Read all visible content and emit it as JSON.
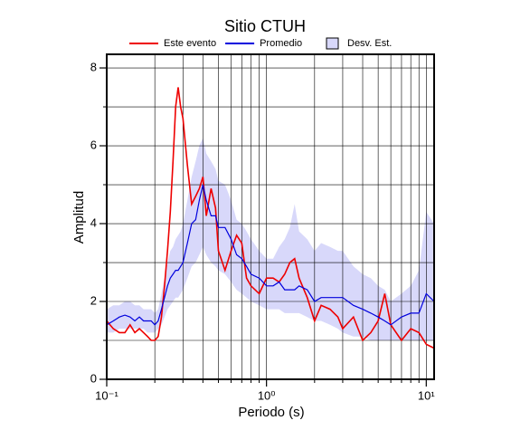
{
  "chart_data": {
    "type": "line",
    "title": "Sitio CTUH",
    "xlabel": "Periodo (s)",
    "ylabel": "Amplitud",
    "log_x": true,
    "grid": true,
    "xlim": [
      0.1,
      11.2
    ],
    "ylim": [
      0,
      8.35
    ],
    "xticks": [
      {
        "value": 0.1,
        "label": "10⁻¹"
      },
      {
        "value": 1,
        "label": "10⁰"
      },
      {
        "value": 10,
        "label": "10¹"
      }
    ],
    "yticks": [
      0,
      2,
      4,
      6,
      8
    ],
    "x": [
      0.1,
      0.11,
      0.12,
      0.13,
      0.14,
      0.15,
      0.16,
      0.17,
      0.18,
      0.19,
      0.2,
      0.21,
      0.22,
      0.23,
      0.24,
      0.25,
      0.26,
      0.27,
      0.28,
      0.29,
      0.3,
      0.32,
      0.34,
      0.36,
      0.38,
      0.4,
      0.42,
      0.45,
      0.48,
      0.5,
      0.55,
      0.6,
      0.65,
      0.7,
      0.75,
      0.8,
      0.9,
      1.0,
      1.1,
      1.2,
      1.3,
      1.4,
      1.5,
      1.6,
      1.8,
      2.0,
      2.2,
      2.5,
      2.8,
      3.0,
      3.5,
      4.0,
      4.5,
      5.0,
      5.5,
      6.0,
      7.0,
      8.0,
      9.0,
      10,
      11.2
    ],
    "band": {
      "name": "Desv. Est.",
      "color": "#d8d8fa",
      "lower": [
        1.2,
        1.2,
        1.3,
        1.3,
        1.3,
        1.3,
        1.3,
        1.3,
        1.2,
        1.2,
        1.2,
        1.3,
        1.4,
        1.6,
        1.8,
        1.9,
        2.0,
        2.1,
        2.1,
        2.2,
        2.3,
        2.6,
        2.9,
        3.0,
        3.2,
        3.4,
        3.2,
        3.0,
        2.9,
        2.8,
        2.7,
        2.5,
        2.3,
        2.2,
        2.1,
        2.0,
        1.9,
        1.8,
        1.8,
        1.8,
        1.7,
        1.7,
        1.7,
        1.7,
        1.6,
        1.5,
        1.5,
        1.4,
        1.3,
        1.2,
        1.1,
        1.1,
        1.0,
        1.0,
        1.0,
        1.0,
        1.0,
        1.0,
        1.0,
        1.0,
        1.0
      ],
      "upper": [
        1.8,
        1.9,
        1.9,
        2.0,
        2.0,
        1.9,
        1.9,
        1.8,
        1.8,
        1.8,
        1.7,
        1.8,
        2.2,
        2.6,
        3.0,
        3.3,
        3.4,
        3.6,
        3.7,
        3.8,
        4.0,
        4.6,
        5.2,
        5.6,
        6.0,
        6.2,
        5.8,
        5.6,
        5.4,
        5.1,
        5.0,
        4.6,
        4.1,
        4.0,
        3.8,
        3.6,
        3.3,
        3.1,
        3.1,
        3.4,
        3.6,
        3.9,
        4.5,
        3.8,
        3.6,
        3.3,
        3.5,
        3.4,
        3.3,
        3.3,
        2.9,
        2.7,
        2.6,
        2.4,
        2.3,
        2.0,
        2.2,
        2.4,
        2.8,
        4.3,
        4.0
      ]
    },
    "series": [
      {
        "name": "Este evento",
        "color": "#ee0000",
        "values": [
          1.5,
          1.3,
          1.2,
          1.2,
          1.4,
          1.2,
          1.3,
          1.2,
          1.1,
          1.0,
          1.0,
          1.1,
          1.6,
          2.4,
          3.3,
          4.3,
          5.6,
          7.0,
          7.5,
          7.0,
          6.7,
          5.5,
          4.5,
          4.7,
          4.9,
          5.2,
          4.2,
          4.9,
          4.4,
          3.3,
          2.8,
          3.3,
          3.7,
          3.5,
          2.6,
          2.4,
          2.2,
          2.6,
          2.6,
          2.5,
          2.7,
          3.0,
          3.1,
          2.6,
          2.1,
          1.5,
          1.9,
          1.8,
          1.6,
          1.3,
          1.6,
          1.0,
          1.2,
          1.5,
          2.2,
          1.4,
          1.0,
          1.3,
          1.2,
          0.9,
          0.8
        ]
      },
      {
        "name": "Promedio",
        "color": "#0000dd",
        "values": [
          1.4,
          1.5,
          1.6,
          1.65,
          1.6,
          1.5,
          1.6,
          1.5,
          1.5,
          1.5,
          1.4,
          1.5,
          1.8,
          2.1,
          2.4,
          2.6,
          2.7,
          2.8,
          2.8,
          2.9,
          3.0,
          3.5,
          4.0,
          4.1,
          4.6,
          5.0,
          4.6,
          4.2,
          4.2,
          3.9,
          3.9,
          3.6,
          3.2,
          3.1,
          2.9,
          2.7,
          2.6,
          2.4,
          2.4,
          2.5,
          2.3,
          2.3,
          2.3,
          2.4,
          2.3,
          2.0,
          2.1,
          2.1,
          2.1,
          2.1,
          1.9,
          1.8,
          1.7,
          1.6,
          1.5,
          1.4,
          1.6,
          1.7,
          1.7,
          2.2,
          2.0
        ]
      }
    ]
  }
}
